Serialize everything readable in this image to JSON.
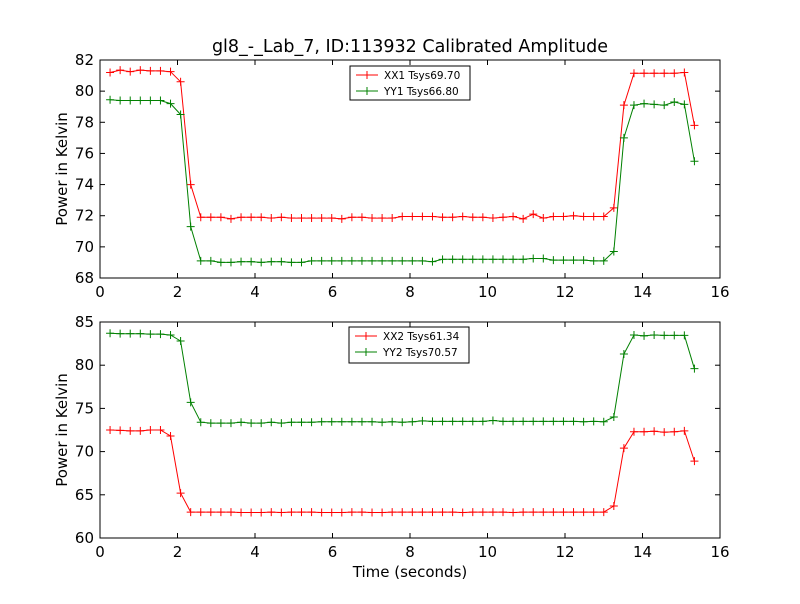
{
  "figure": {
    "title": "gl8_-_Lab_7, ID:113932 Calibrated Amplitude",
    "xlabel": "Time (seconds)"
  },
  "chart_data": [
    {
      "type": "line",
      "xlabel": "",
      "ylabel": "Power in Kelvin",
      "xlim": [
        0,
        16
      ],
      "ylim": [
        68,
        82
      ],
      "xticks": [
        0,
        2,
        4,
        6,
        8,
        10,
        12,
        14,
        16
      ],
      "yticks": [
        68,
        70,
        72,
        74,
        76,
        78,
        80,
        82
      ],
      "grid": false,
      "legend_position": "top-center",
      "x": [
        0.26,
        0.52,
        0.78,
        1.04,
        1.3,
        1.56,
        1.82,
        2.08,
        2.34,
        2.6,
        2.86,
        3.12,
        3.38,
        3.64,
        3.9,
        4.16,
        4.42,
        4.68,
        4.94,
        5.2,
        5.46,
        5.72,
        5.98,
        6.24,
        6.5,
        6.76,
        7.02,
        7.28,
        7.54,
        7.8,
        8.06,
        8.32,
        8.58,
        8.84,
        9.1,
        9.36,
        9.62,
        9.88,
        10.14,
        10.4,
        10.66,
        10.92,
        11.18,
        11.44,
        11.7,
        11.96,
        12.22,
        12.48,
        12.74,
        13.0,
        13.26,
        13.52,
        13.78,
        14.04,
        14.3,
        14.56,
        14.82,
        15.08,
        15.34
      ],
      "series": [
        {
          "name": "XX1 Tsys69.70",
          "color": "#ff0000",
          "values": [
            81.2,
            81.35,
            81.25,
            81.35,
            81.3,
            81.3,
            81.25,
            80.6,
            74.0,
            71.9,
            71.9,
            71.9,
            71.8,
            71.9,
            71.9,
            71.9,
            71.85,
            71.9,
            71.85,
            71.85,
            71.85,
            71.85,
            71.85,
            71.8,
            71.9,
            71.9,
            71.85,
            71.85,
            71.85,
            71.95,
            71.95,
            71.95,
            71.95,
            71.9,
            71.9,
            71.95,
            71.9,
            71.9,
            71.85,
            71.9,
            71.95,
            71.8,
            72.1,
            71.85,
            71.95,
            71.95,
            72.0,
            71.95,
            71.95,
            71.95,
            72.5,
            79.1,
            81.15,
            81.15,
            81.15,
            81.15,
            81.15,
            81.2,
            77.8
          ]
        },
        {
          "name": "YY1 Tsys66.80",
          "color": "#008000",
          "values": [
            79.45,
            79.4,
            79.4,
            79.4,
            79.4,
            79.4,
            79.2,
            78.5,
            71.3,
            69.1,
            69.1,
            69.0,
            69.0,
            69.05,
            69.05,
            69.0,
            69.05,
            69.05,
            69.0,
            69.0,
            69.1,
            69.1,
            69.1,
            69.1,
            69.1,
            69.1,
            69.1,
            69.1,
            69.1,
            69.1,
            69.1,
            69.1,
            69.05,
            69.2,
            69.2,
            69.2,
            69.2,
            69.2,
            69.2,
            69.2,
            69.2,
            69.2,
            69.25,
            69.25,
            69.15,
            69.15,
            69.15,
            69.15,
            69.1,
            69.1,
            69.7,
            77.0,
            79.1,
            79.2,
            79.15,
            79.1,
            79.3,
            79.15,
            75.5
          ]
        }
      ]
    },
    {
      "type": "line",
      "xlabel": "Time (seconds)",
      "ylabel": "Power in Kelvin",
      "xlim": [
        0,
        16
      ],
      "ylim": [
        60,
        85
      ],
      "xticks": [
        0,
        2,
        4,
        6,
        8,
        10,
        12,
        14,
        16
      ],
      "yticks": [
        60,
        65,
        70,
        75,
        80,
        85
      ],
      "grid": false,
      "legend_position": "top-center",
      "x": [
        0.26,
        0.52,
        0.78,
        1.04,
        1.3,
        1.56,
        1.82,
        2.08,
        2.34,
        2.6,
        2.86,
        3.12,
        3.38,
        3.64,
        3.9,
        4.16,
        4.42,
        4.68,
        4.94,
        5.2,
        5.46,
        5.72,
        5.98,
        6.24,
        6.5,
        6.76,
        7.02,
        7.28,
        7.54,
        7.8,
        8.06,
        8.32,
        8.58,
        8.84,
        9.1,
        9.36,
        9.62,
        9.88,
        10.14,
        10.4,
        10.66,
        10.92,
        11.18,
        11.44,
        11.7,
        11.96,
        12.22,
        12.48,
        12.74,
        13.0,
        13.26,
        13.52,
        13.78,
        14.04,
        14.3,
        14.56,
        14.82,
        15.08,
        15.34
      ],
      "series": [
        {
          "name": "XX2 Tsys61.34",
          "color": "#ff0000",
          "values": [
            72.5,
            72.45,
            72.4,
            72.4,
            72.5,
            72.5,
            71.8,
            65.2,
            63.0,
            63.0,
            63.0,
            63.0,
            63.0,
            62.95,
            62.95,
            62.95,
            63.0,
            62.95,
            63.0,
            63.0,
            63.0,
            62.95,
            62.95,
            62.95,
            63.0,
            63.0,
            62.95,
            62.95,
            63.0,
            63.0,
            63.0,
            63.0,
            63.0,
            63.0,
            63.0,
            62.95,
            63.0,
            63.0,
            63.0,
            63.0,
            62.95,
            63.0,
            63.0,
            63.0,
            63.0,
            63.0,
            63.0,
            63.0,
            63.0,
            63.0,
            63.7,
            70.4,
            72.3,
            72.3,
            72.35,
            72.25,
            72.3,
            72.4,
            68.9
          ]
        },
        {
          "name": "YY2 Tsys70.57",
          "color": "#008000",
          "values": [
            83.7,
            83.65,
            83.65,
            83.65,
            83.6,
            83.6,
            83.5,
            82.8,
            75.7,
            73.4,
            73.3,
            73.3,
            73.3,
            73.4,
            73.3,
            73.3,
            73.4,
            73.3,
            73.4,
            73.4,
            73.4,
            73.45,
            73.45,
            73.45,
            73.45,
            73.45,
            73.45,
            73.4,
            73.45,
            73.4,
            73.45,
            73.55,
            73.5,
            73.5,
            73.5,
            73.5,
            73.5,
            73.5,
            73.6,
            73.5,
            73.5,
            73.5,
            73.5,
            73.5,
            73.5,
            73.5,
            73.5,
            73.45,
            73.5,
            73.45,
            74.0,
            81.3,
            83.5,
            83.4,
            83.5,
            83.45,
            83.45,
            83.45,
            79.6
          ]
        }
      ]
    }
  ]
}
